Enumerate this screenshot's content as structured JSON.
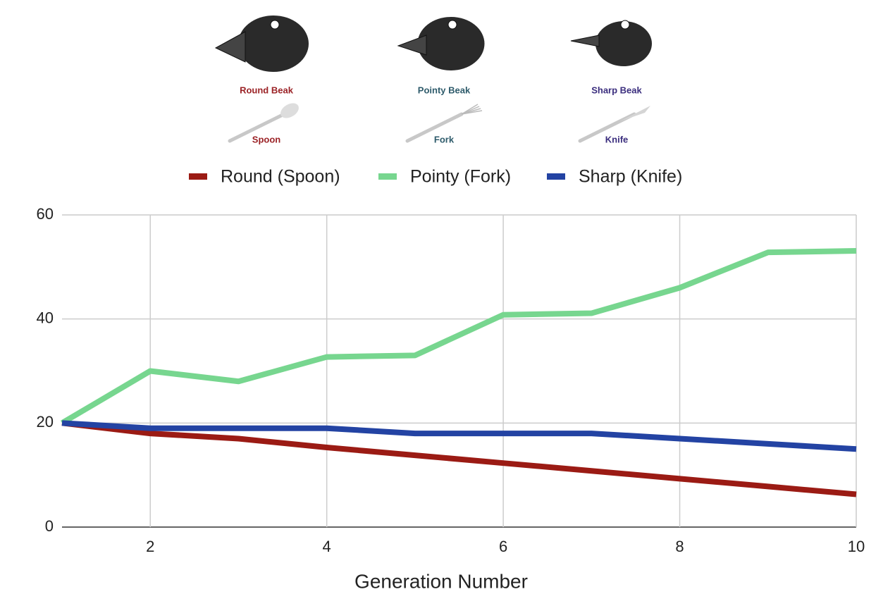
{
  "chart_data": {
    "type": "line",
    "x_label": "Generation Number",
    "x": [
      1,
      2,
      3,
      4,
      5,
      6,
      7,
      8,
      9,
      10
    ],
    "xlim": [
      1,
      10
    ],
    "xticks": [
      2,
      4,
      6,
      8,
      10
    ],
    "ylim": [
      0,
      60
    ],
    "yticks": [
      0,
      20,
      40,
      60
    ],
    "grid": true,
    "legend": "top",
    "series": [
      {
        "name": "Round (Spoon)",
        "color": "#9b1b14",
        "values": [
          20,
          18,
          17,
          15.3,
          13.8,
          12.3,
          10.8,
          9.3,
          7.8,
          6.3
        ]
      },
      {
        "name": "Pointy (Fork)",
        "color": "#77d68f",
        "values": [
          20,
          30,
          28,
          32.7,
          33,
          40.8,
          41.1,
          46,
          52.8,
          53.1
        ]
      },
      {
        "name": "Sharp (Knife)",
        "color": "#2343a3",
        "values": [
          20,
          19,
          19,
          19,
          18,
          18,
          18,
          17,
          16,
          15
        ]
      }
    ],
    "illustrations": [
      {
        "label": "Round Beak",
        "utensil": "Spoon",
        "color": "#9b2226"
      },
      {
        "label": "Pointy Beak",
        "utensil": "Fork",
        "color": "#2e5b6b"
      },
      {
        "label": "Sharp Beak",
        "utensil": "Knife",
        "color": "#3b2e7e"
      }
    ]
  }
}
